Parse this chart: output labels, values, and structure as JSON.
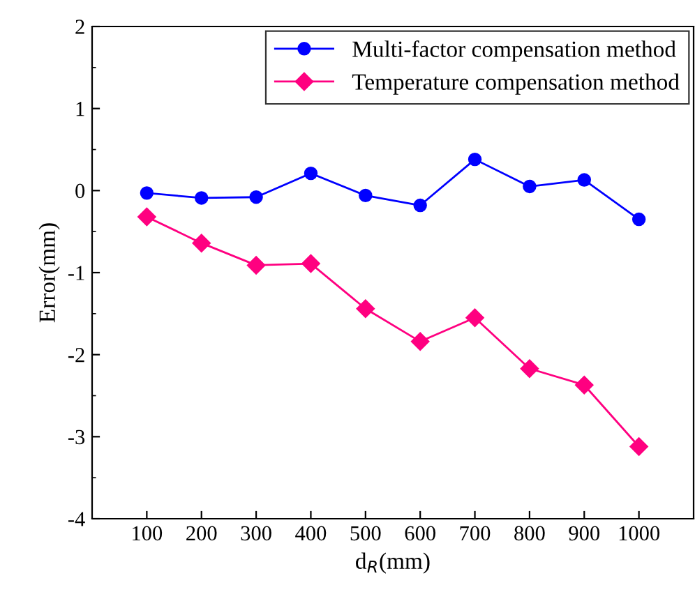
{
  "chart_data": {
    "type": "line",
    "xlabel": "d$_{R}$(mm)",
    "ylabel": "Error(mm)",
    "x": [
      100,
      200,
      300,
      400,
      500,
      600,
      700,
      800,
      900,
      1000
    ],
    "series": [
      {
        "name": "Multi-factor compensation method",
        "color": "#0000ff",
        "marker": "circle",
        "values": [
          -0.03,
          -0.09,
          -0.08,
          0.21,
          -0.06,
          -0.18,
          0.38,
          0.05,
          0.13,
          -0.35
        ]
      },
      {
        "name": "Temperature compensation method",
        "color": "#ff0080",
        "marker": "diamond",
        "values": [
          -0.32,
          -0.64,
          -0.91,
          -0.89,
          -1.44,
          -1.84,
          -1.55,
          -2.17,
          -2.37,
          -3.12
        ]
      }
    ],
    "xlim": [
      0,
      1100
    ],
    "xticks": [
      100,
      200,
      300,
      400,
      500,
      600,
      700,
      800,
      900,
      1000
    ],
    "ylim": [
      -4,
      2
    ],
    "yticks": [
      -4,
      -3,
      -2,
      -1,
      0,
      1,
      2
    ],
    "grid": false,
    "legend": "top right",
    "line_style": "solid"
  }
}
